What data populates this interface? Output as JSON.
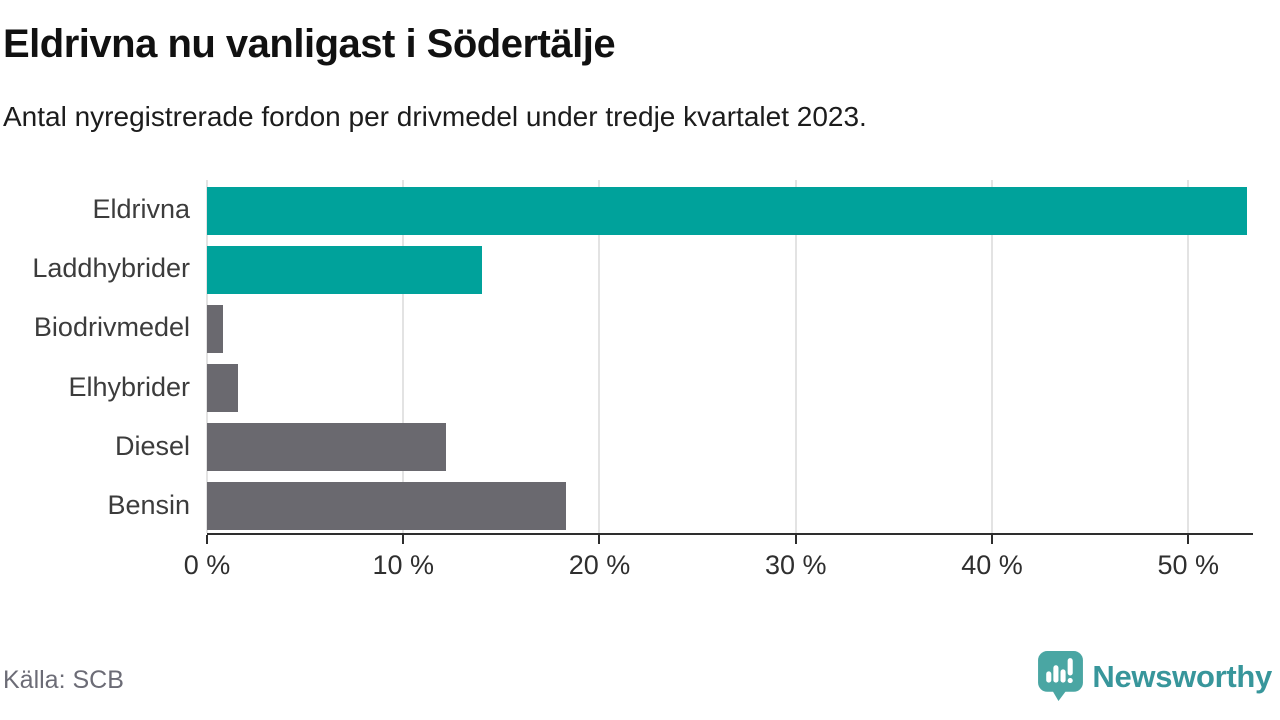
{
  "header": {
    "title": "Eldrivna nu vanligast i Södertälje",
    "subtitle": "Antal nyregistrerade fordon per drivmedel under tredje kvartalet 2023."
  },
  "footer": {
    "source": "Källa: SCB",
    "brand": "Newsworthy"
  },
  "colors": {
    "teal": "#00A29B",
    "gray": "#6A696F",
    "gridline": "#E3E3E3",
    "axis": "#2E2E2E",
    "logo_icon": "#4AA6A3",
    "logo_text": "#38969B"
  },
  "chart_data": {
    "type": "bar",
    "orientation": "horizontal",
    "title": "Eldrivna nu vanligast i Södertälje",
    "subtitle": "Antal nyregistrerade fordon per drivmedel under tredje kvartalet 2023.",
    "xlabel": "",
    "ylabel": "",
    "xlim": [
      0,
      53.3
    ],
    "grid": true,
    "legend": "none",
    "unit": "%",
    "categories": [
      "Eldrivna",
      "Laddhybrider",
      "Biodrivmedel",
      "Elhybrider",
      "Diesel",
      "Bensin"
    ],
    "series": [
      {
        "category": "Eldrivna",
        "value": 53.0,
        "color": "teal"
      },
      {
        "category": "Laddhybrider",
        "value": 14.0,
        "color": "teal"
      },
      {
        "category": "Biodrivmedel",
        "value": 0.8,
        "color": "gray"
      },
      {
        "category": "Elhybrider",
        "value": 1.6,
        "color": "gray"
      },
      {
        "category": "Diesel",
        "value": 12.2,
        "color": "gray"
      },
      {
        "category": "Bensin",
        "value": 18.3,
        "color": "gray"
      }
    ],
    "x_ticks": [
      {
        "value": 0,
        "label": "0 %"
      },
      {
        "value": 10,
        "label": "10 %"
      },
      {
        "value": 20,
        "label": "20 %"
      },
      {
        "value": 30,
        "label": "30 %"
      },
      {
        "value": 40,
        "label": "40 %"
      },
      {
        "value": 50,
        "label": "50 %"
      }
    ],
    "source": "Källa: SCB"
  }
}
